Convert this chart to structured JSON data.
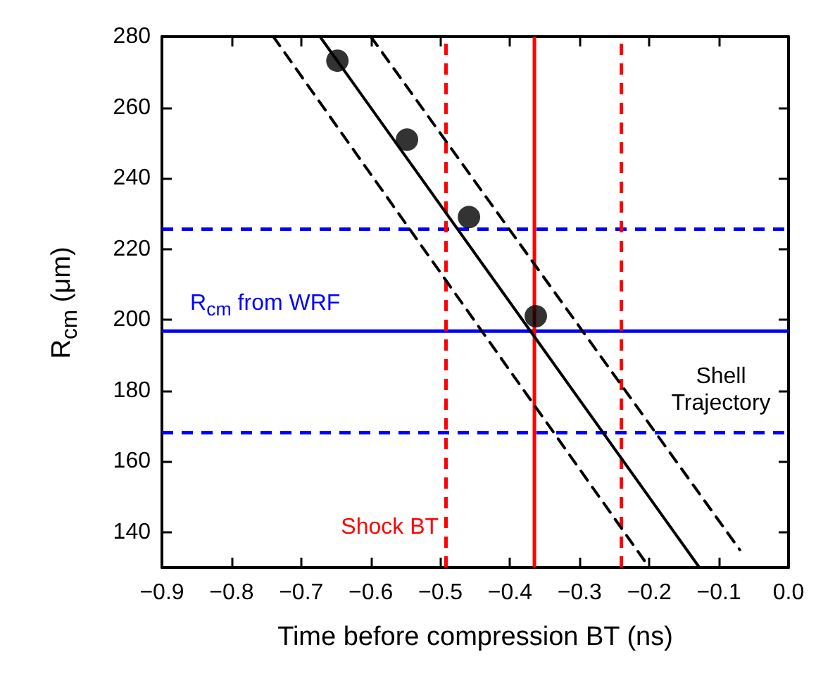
{
  "chart_data": {
    "type": "scatter",
    "xlabel": "Time before compression BT (ns)",
    "ylabel": "R$_{cm}$ (μm)",
    "xlim": [
      -0.9,
      0.0
    ],
    "ylim": [
      130,
      280
    ],
    "xticks": [
      {
        "value": -0.9,
        "label": "−0.9"
      },
      {
        "value": -0.8,
        "label": "−0.8"
      },
      {
        "value": -0.7,
        "label": "−0.7"
      },
      {
        "value": -0.6,
        "label": "−0.6"
      },
      {
        "value": -0.5,
        "label": "−0.5"
      },
      {
        "value": -0.4,
        "label": "−0.4"
      },
      {
        "value": -0.3,
        "label": "−0.3"
      },
      {
        "value": -0.2,
        "label": "−0.2"
      },
      {
        "value": -0.1,
        "label": "−0.1"
      },
      {
        "value": 0.0,
        "label": "0.0"
      }
    ],
    "yticks": [
      140,
      160,
      180,
      200,
      220,
      240,
      260,
      280
    ],
    "grid": false,
    "marker": "circle",
    "series": [
      {
        "color": "#000000",
        "x": [
          -0.648,
          -0.548,
          -0.459,
          -0.363
        ],
        "values": [
          273.2,
          250.9,
          229,
          201
        ]
      },
      {
        "type": "line",
        "color": "#000000",
        "line_style": "solid",
        "marker": "none",
        "x": [
          -0.673,
          -0.128
        ],
        "values": [
          280,
          130
        ]
      },
      {
        "type": "line",
        "color": "#000000",
        "line_style": "dashed",
        "marker": "none",
        "x": [
          -0.74,
          -0.2
        ],
        "values": [
          280,
          130
        ]
      },
      {
        "type": "line",
        "color": "#000000",
        "line_style": "dashed",
        "marker": "none",
        "x": [
          -0.6,
          -0.07
        ],
        "values": [
          280,
          135
        ]
      }
    ],
    "ref_lines": [
      {
        "axis": "y",
        "value": 196.8,
        "label": "R$_{cm}$ from WRF",
        "color": "#0000ff",
        "line_style": "solid"
      },
      {
        "axis": "y",
        "value": 225.6,
        "color": "#0000ff",
        "line_style": "dashed"
      },
      {
        "axis": "y",
        "value": 168.1,
        "color": "#0000ff",
        "line_style": "dashed"
      },
      {
        "axis": "x",
        "value": -0.365,
        "label": "Shock BT",
        "color": "#ff0000",
        "line_style": "solid"
      },
      {
        "axis": "x",
        "value": -0.492,
        "color": "#ff0000",
        "line_style": "dashed"
      },
      {
        "axis": "x",
        "value": -0.24,
        "color": "#ff0000",
        "line_style": "dashed"
      }
    ],
    "annotations": [
      "Shell Trajectory"
    ]
  }
}
